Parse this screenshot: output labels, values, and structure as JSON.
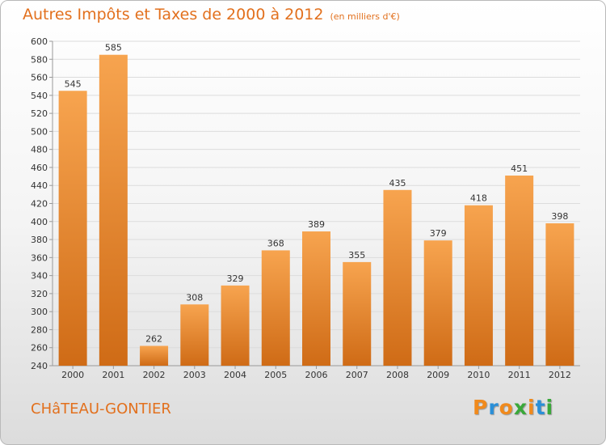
{
  "title": {
    "main": "Autres Impôts et Taxes de 2000 à 2012",
    "sub": "(en milliers d'€)"
  },
  "location": "CHâTEAU-GONTIER",
  "logo": {
    "text": "Proxiti",
    "letters": [
      {
        "ch": "P",
        "color": "#f08a1d"
      },
      {
        "ch": "r",
        "color": "#2a8fd8"
      },
      {
        "ch": "o",
        "color": "#f08a1d"
      },
      {
        "ch": "x",
        "color": "#3aa83a"
      },
      {
        "ch": "i",
        "color": "#f08a1d"
      },
      {
        "ch": "t",
        "color": "#2a8fd8"
      },
      {
        "ch": "i",
        "color": "#3aa83a"
      }
    ]
  },
  "colors": {
    "bar_top": "#f7a44f",
    "bar_bottom": "#cf6b16",
    "title": "#e2701d",
    "grid": "#dcdcdc"
  },
  "chart_data": {
    "type": "bar",
    "categories": [
      "2000",
      "2001",
      "2002",
      "2003",
      "2004",
      "2005",
      "2006",
      "2007",
      "2008",
      "2009",
      "2010",
      "2011",
      "2012"
    ],
    "values": [
      545,
      585,
      262,
      308,
      329,
      368,
      389,
      355,
      435,
      379,
      418,
      451,
      398
    ],
    "ylim": [
      240,
      600
    ],
    "yticks": [
      240,
      260,
      280,
      300,
      320,
      340,
      360,
      380,
      400,
      420,
      440,
      460,
      480,
      500,
      520,
      540,
      560,
      580,
      600
    ],
    "grid": true
  }
}
